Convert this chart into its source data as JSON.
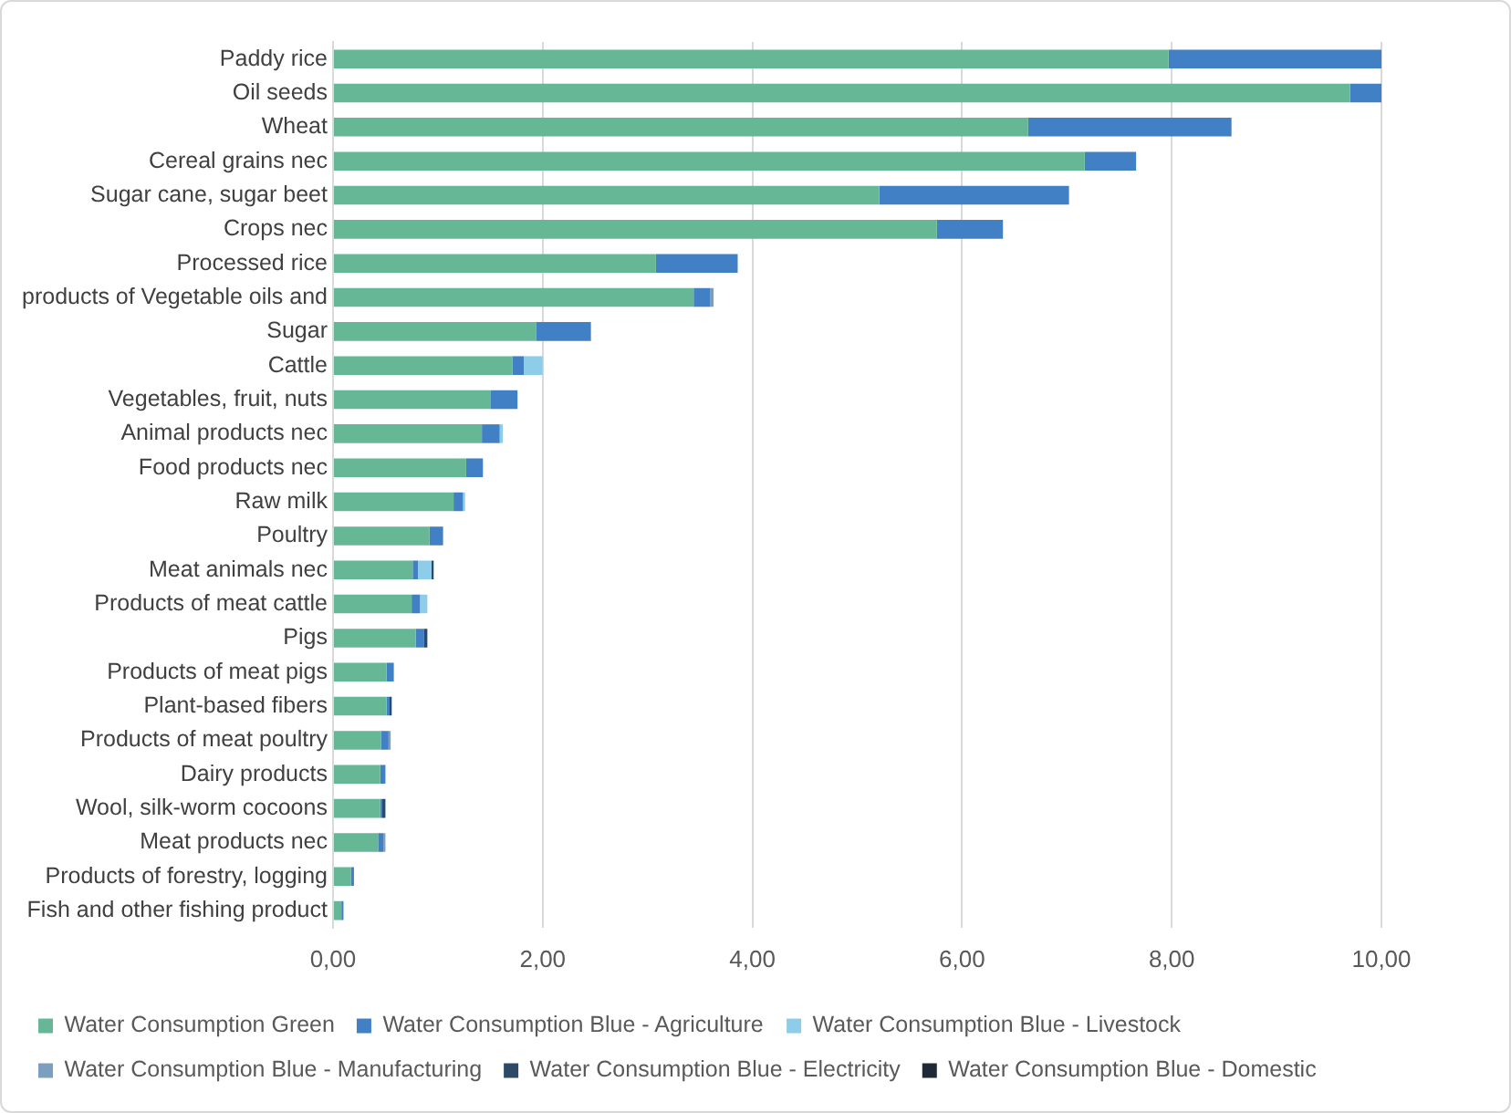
{
  "chart_data": {
    "type": "bar",
    "orientation": "horizontal",
    "stacked": true,
    "categories": [
      "Paddy rice",
      "Oil seeds",
      "Wheat",
      "Cereal grains nec",
      "Sugar cane, sugar beet",
      "Crops nec",
      "Processed rice",
      "products of Vegetable oils and",
      "Sugar",
      "Cattle",
      "Vegetables, fruit, nuts",
      "Animal products nec",
      "Food products nec",
      "Raw milk",
      "Poultry",
      "Meat animals nec",
      "Products of meat cattle",
      "Pigs",
      "Products of meat pigs",
      "Plant-based fibers",
      "Products of meat poultry",
      "Dairy products",
      "Wool, silk-worm cocoons",
      "Meat products nec",
      "Products of forestry, logging",
      "Fish and other fishing product"
    ],
    "series": [
      {
        "name": "Water Consumption Green",
        "color": "#66b796",
        "values": [
          7.97,
          9.7,
          6.63,
          7.17,
          5.21,
          5.76,
          3.08,
          3.44,
          1.94,
          1.71,
          1.5,
          1.42,
          1.27,
          1.15,
          0.92,
          0.76,
          0.75,
          0.79,
          0.51,
          0.51,
          0.46,
          0.45,
          0.45,
          0.43,
          0.17,
          0.08
        ]
      },
      {
        "name": "Water Consumption Blue - Agriculture",
        "color": "#4180c4",
        "values": [
          2.03,
          0.3,
          1.94,
          0.49,
          1.81,
          0.63,
          0.78,
          0.16,
          0.52,
          0.11,
          0.26,
          0.17,
          0.16,
          0.09,
          0.13,
          0.05,
          0.08,
          0.08,
          0.07,
          0.03,
          0.07,
          0.05,
          0.02,
          0.05,
          0.03,
          0.02
        ]
      },
      {
        "name": "Water Consumption Blue - Livestock",
        "color": "#8ecdea",
        "values": [
          null,
          null,
          null,
          null,
          null,
          null,
          null,
          null,
          null,
          0.18,
          null,
          0.03,
          null,
          0.02,
          null,
          0.13,
          0.07,
          null,
          null,
          null,
          null,
          null,
          null,
          null,
          null,
          null
        ]
      },
      {
        "name": "Water Consumption Blue - Manufacturing",
        "color": "#7c9fc0",
        "values": [
          null,
          null,
          null,
          null,
          null,
          null,
          null,
          0.03,
          null,
          null,
          null,
          null,
          null,
          null,
          null,
          null,
          null,
          null,
          null,
          null,
          0.02,
          null,
          null,
          0.02,
          null,
          null
        ]
      },
      {
        "name": "Water Consumption Blue - Electricity",
        "color": "#2c4a68",
        "values": [
          null,
          null,
          null,
          null,
          null,
          null,
          null,
          null,
          null,
          null,
          null,
          null,
          null,
          null,
          null,
          0.02,
          null,
          0.03,
          null,
          0.02,
          null,
          null,
          0.03,
          null,
          null,
          null
        ]
      },
      {
        "name": "Water Consumption Blue - Domestic",
        "color": "#1e2a38",
        "values": [
          null,
          null,
          null,
          null,
          null,
          null,
          null,
          null,
          null,
          null,
          null,
          null,
          null,
          null,
          null,
          null,
          null,
          null,
          null,
          null,
          null,
          null,
          null,
          null,
          null,
          null
        ]
      }
    ],
    "xlim": [
      0,
      10
    ],
    "xticks": [
      {
        "value": 0,
        "label": "0,00"
      },
      {
        "value": 2,
        "label": "2,00"
      },
      {
        "value": 4,
        "label": "4,00"
      },
      {
        "value": 6,
        "label": "6,00"
      },
      {
        "value": 8,
        "label": "8,00"
      },
      {
        "value": 10,
        "label": "10,00"
      }
    ],
    "grid": "x",
    "legend": "bottom"
  }
}
